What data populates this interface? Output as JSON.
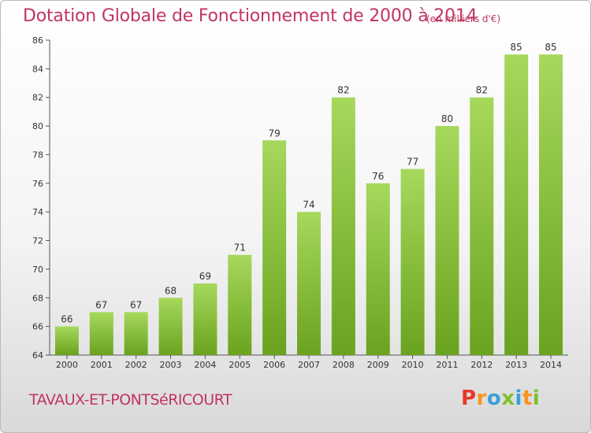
{
  "header": {
    "title": "Dotation Globale de Fonctionnement de 2000 à 2014",
    "subtitle": "(en milliers d'€)"
  },
  "footer": {
    "city": "TAVAUX-ET-PONTSéRICOURT",
    "logo": "Proxiti"
  },
  "colors": {
    "title": "#c0355e",
    "bar_light": "#a6d85c",
    "bar_dark": "#6aa31f",
    "logo_letters": [
      "#e8372b",
      "#f7941d",
      "#3aa0d8",
      "#7fbf2f",
      "#3aa0d8",
      "#f7941d",
      "#7fbf2f"
    ]
  },
  "chart_data": {
    "type": "bar",
    "title": "Dotation Globale de Fonctionnement de 2000 à 2014",
    "subtitle": "(en milliers d'€)",
    "categories": [
      "2000",
      "2001",
      "2002",
      "2003",
      "2004",
      "2005",
      "2006",
      "2007",
      "2008",
      "2009",
      "2010",
      "2011",
      "2012",
      "2013",
      "2014"
    ],
    "values": [
      66,
      67,
      67,
      68,
      69,
      71,
      79,
      74,
      82,
      76,
      77,
      80,
      82,
      85,
      85
    ],
    "ylim": [
      64,
      86
    ],
    "yticks": [
      64,
      66,
      68,
      70,
      72,
      74,
      76,
      78,
      80,
      82,
      84,
      86
    ],
    "grid": false,
    "data_labels": true
  }
}
